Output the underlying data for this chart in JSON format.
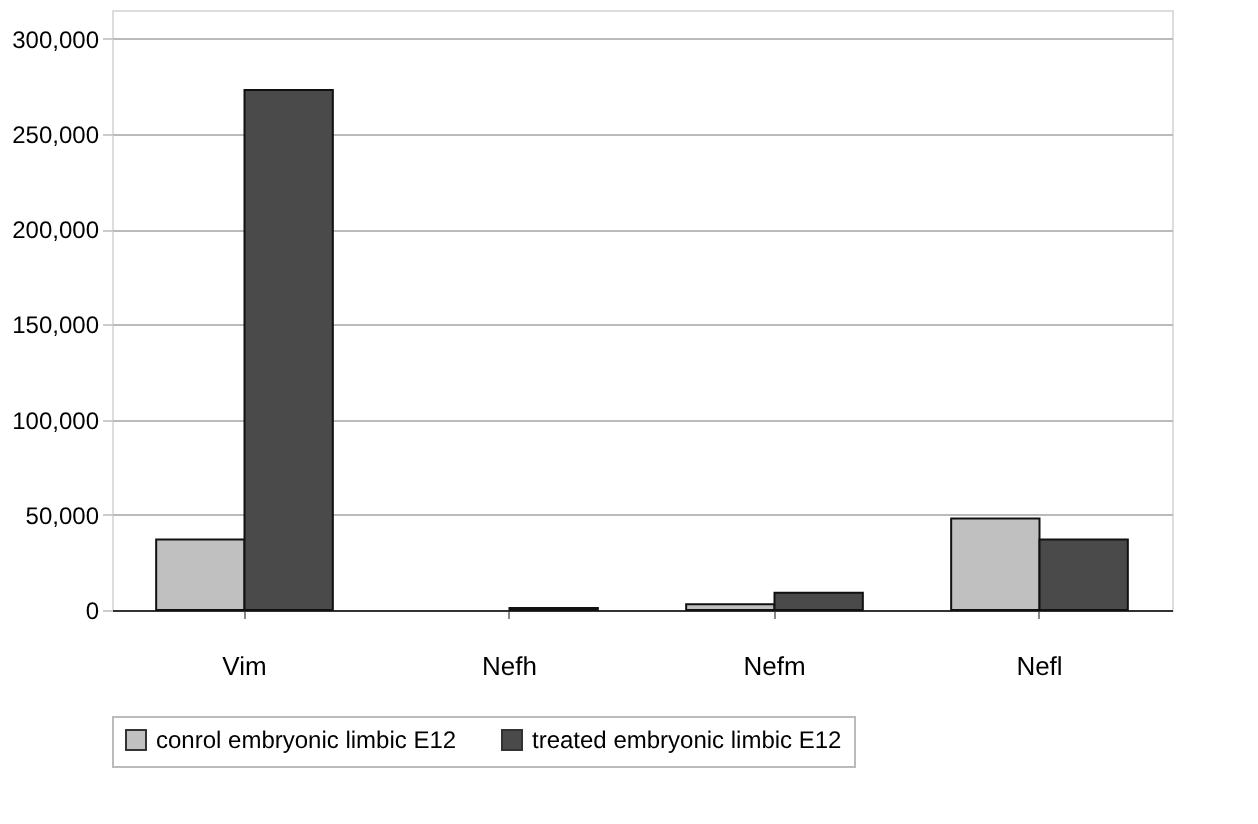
{
  "chart_data": {
    "type": "bar",
    "categories": [
      "Vim",
      "Nefh",
      "Nefm",
      "Nefl"
    ],
    "series": [
      {
        "name": "conrol embryonic limbic E12",
        "color": "#c0c0c0",
        "values": [
          37000,
          null,
          3000,
          48000
        ]
      },
      {
        "name": "treated embryonic limbic E12",
        "color": "#4a4a4a",
        "values": [
          273000,
          1000,
          9000,
          37000
        ]
      }
    ],
    "ylim": [
      0,
      315000
    ],
    "yticks": [
      {
        "value": 0,
        "label": "0"
      },
      {
        "value": 50000,
        "label": "50,000"
      },
      {
        "value": 100000,
        "label": "100,000"
      },
      {
        "value": 150000,
        "label": "150,000"
      },
      {
        "value": 200000,
        "label": "200,000"
      },
      {
        "value": 250000,
        "label": "250,000"
      },
      {
        "value": 300000,
        "label": "300,000"
      }
    ],
    "grid": "y",
    "legend": "bottom"
  }
}
